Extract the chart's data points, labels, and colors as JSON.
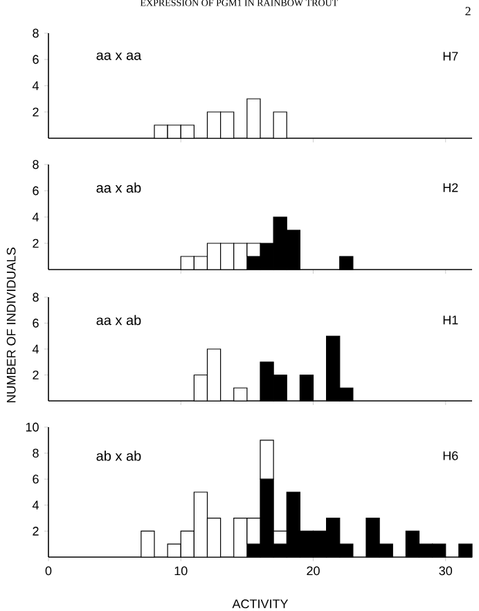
{
  "chart_data": [
    {
      "type": "bar",
      "title": "EXPRESSION OF PGM1 IN RAINBOW TROUT",
      "annotations": [
        "aa x aa",
        "H7",
        "2"
      ],
      "stacked": true,
      "x": [
        8.5,
        9.5,
        10.5,
        11.5,
        12.5,
        13.5,
        14.5,
        15.5,
        16.5,
        17.5
      ],
      "series": [
        {
          "color": "#ffffff",
          "values": [
            1,
            1,
            1,
            null,
            2,
            2,
            null,
            3,
            null,
            2
          ]
        }
      ],
      "xlim": [
        0,
        32
      ],
      "ylim": [
        0,
        8
      ],
      "xticks": [
        {
          "value": 10,
          "label": null
        },
        {
          "value": 20,
          "label": null
        },
        {
          "value": 30,
          "label": null
        }
      ],
      "yticks": [
        2,
        4,
        6,
        8
      ],
      "tick_labels": "y"
    },
    {
      "type": "bar",
      "annotations": [
        "aa  x  ab",
        "H2"
      ],
      "ylabel": "NUMBER OF INDIVIDUALS",
      "stacked": true,
      "x": [
        10.5,
        11.5,
        12.5,
        13.5,
        14.5,
        15.5,
        16.5,
        17.5,
        18.5,
        19.5,
        20.5,
        21.5,
        22.5
      ],
      "series": [
        {
          "color": "#000000",
          "values": [
            null,
            null,
            null,
            null,
            null,
            1,
            2,
            4,
            3,
            null,
            null,
            null,
            1
          ]
        },
        {
          "color": "#ffffff",
          "values": [
            1,
            1,
            2,
            2,
            2,
            1,
            null,
            null,
            null,
            null,
            null,
            null,
            null
          ]
        }
      ],
      "xlim": [
        0,
        32
      ],
      "ylim": [
        0,
        8
      ],
      "xticks": [
        {
          "value": 10,
          "label": null
        },
        {
          "value": 20,
          "label": null
        },
        {
          "value": 30,
          "label": null
        }
      ],
      "yticks": [
        2,
        4,
        6,
        8
      ],
      "tick_labels": "y"
    },
    {
      "type": "bar",
      "annotations": [
        "aa x ab",
        "H1"
      ],
      "stacked": true,
      "x": [
        11.5,
        12.5,
        13.5,
        14.5,
        15.5,
        16.5,
        17.5,
        18.5,
        19.5,
        20.5,
        21.5,
        22.5
      ],
      "series": [
        {
          "color": "#000000",
          "values": [
            null,
            null,
            null,
            null,
            null,
            3,
            2,
            null,
            2,
            null,
            5,
            1
          ]
        },
        {
          "color": "#ffffff",
          "values": [
            2,
            4,
            null,
            1,
            null,
            null,
            null,
            null,
            null,
            null,
            null,
            null
          ]
        }
      ],
      "xlim": [
        0,
        32
      ],
      "ylim": [
        0,
        8
      ],
      "xticks": [
        {
          "value": 10,
          "label": null
        },
        {
          "value": 20,
          "label": null
        },
        {
          "value": 30,
          "label": null
        }
      ],
      "yticks": [
        2,
        4,
        6,
        8
      ],
      "tick_labels": "y"
    },
    {
      "type": "bar",
      "annotations": [
        "ab x ab",
        "H6"
      ],
      "xlabel": "ACTIVITY",
      "stacked": true,
      "x": [
        7.5,
        8.5,
        9.5,
        10.5,
        11.5,
        12.5,
        13.5,
        14.5,
        15.5,
        16.5,
        17.5,
        18.5,
        19.5,
        20.5,
        21.5,
        22.5,
        23.5,
        24.5,
        25.5,
        26.5,
        27.5,
        28.5,
        29.5,
        30.5,
        31.5
      ],
      "series": [
        {
          "color": "#000000",
          "values": [
            null,
            null,
            null,
            null,
            null,
            null,
            null,
            null,
            1,
            6,
            1,
            5,
            2,
            2,
            3,
            1,
            null,
            3,
            1,
            null,
            2,
            1,
            1,
            null,
            1
          ]
        },
        {
          "color": "#ffffff",
          "values": [
            2,
            null,
            1,
            2,
            5,
            3,
            null,
            3,
            2,
            3,
            1,
            null,
            null,
            null,
            null,
            null,
            null,
            null,
            null,
            null,
            null,
            null,
            null,
            null,
            null
          ]
        }
      ],
      "xlim": [
        0,
        32
      ],
      "ylim": [
        0,
        10
      ],
      "xticks": [
        0,
        10,
        20,
        30
      ],
      "yticks": [
        2,
        4,
        6,
        8,
        10
      ]
    }
  ]
}
